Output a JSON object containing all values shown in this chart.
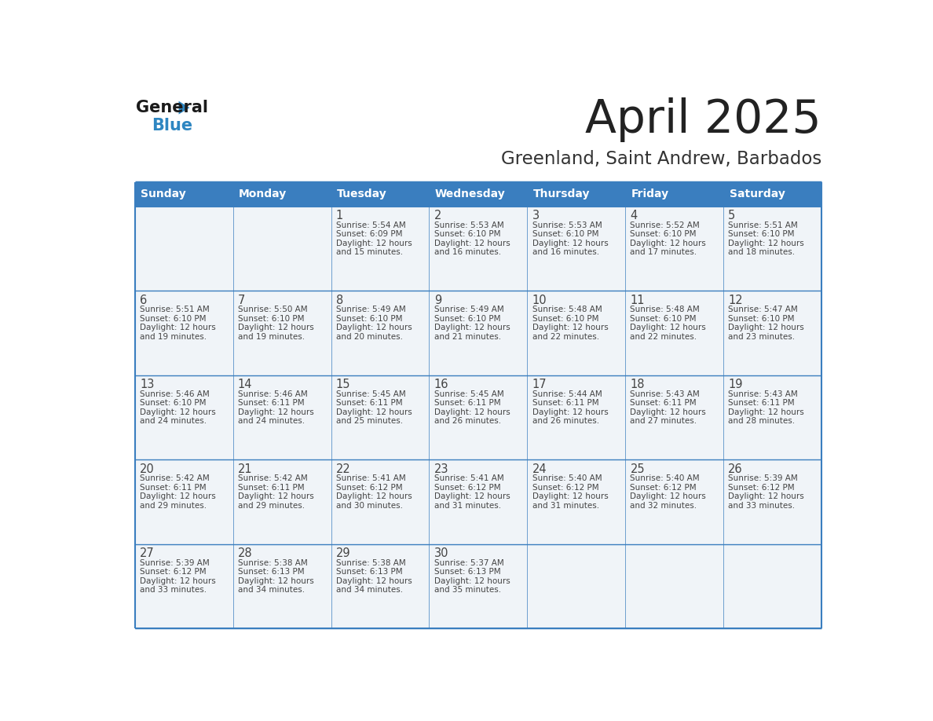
{
  "title": "April 2025",
  "subtitle": "Greenland, Saint Andrew, Barbados",
  "days_of_week": [
    "Sunday",
    "Monday",
    "Tuesday",
    "Wednesday",
    "Thursday",
    "Friday",
    "Saturday"
  ],
  "header_bg": "#3a7ebf",
  "header_text_color": "#FFFFFF",
  "cell_bg": "#f0f4f8",
  "cell_bg_empty": "#e8ecf0",
  "border_color": "#3a7ebf",
  "row_border_color": "#3a7ebf",
  "text_color": "#444444",
  "title_color": "#222222",
  "subtitle_color": "#333333",
  "logo_general_color": "#1a1a1a",
  "logo_blue_color": "#2E86C1",
  "logo_triangle_color": "#2E86C1",
  "calendar_data": [
    [
      null,
      null,
      {
        "day": 1,
        "sunrise": "5:54 AM",
        "sunset": "6:09 PM",
        "daylight_hours": 12,
        "daylight_minutes": 15
      },
      {
        "day": 2,
        "sunrise": "5:53 AM",
        "sunset": "6:10 PM",
        "daylight_hours": 12,
        "daylight_minutes": 16
      },
      {
        "day": 3,
        "sunrise": "5:53 AM",
        "sunset": "6:10 PM",
        "daylight_hours": 12,
        "daylight_minutes": 16
      },
      {
        "day": 4,
        "sunrise": "5:52 AM",
        "sunset": "6:10 PM",
        "daylight_hours": 12,
        "daylight_minutes": 17
      },
      {
        "day": 5,
        "sunrise": "5:51 AM",
        "sunset": "6:10 PM",
        "daylight_hours": 12,
        "daylight_minutes": 18
      }
    ],
    [
      {
        "day": 6,
        "sunrise": "5:51 AM",
        "sunset": "6:10 PM",
        "daylight_hours": 12,
        "daylight_minutes": 19
      },
      {
        "day": 7,
        "sunrise": "5:50 AM",
        "sunset": "6:10 PM",
        "daylight_hours": 12,
        "daylight_minutes": 19
      },
      {
        "day": 8,
        "sunrise": "5:49 AM",
        "sunset": "6:10 PM",
        "daylight_hours": 12,
        "daylight_minutes": 20
      },
      {
        "day": 9,
        "sunrise": "5:49 AM",
        "sunset": "6:10 PM",
        "daylight_hours": 12,
        "daylight_minutes": 21
      },
      {
        "day": 10,
        "sunrise": "5:48 AM",
        "sunset": "6:10 PM",
        "daylight_hours": 12,
        "daylight_minutes": 22
      },
      {
        "day": 11,
        "sunrise": "5:48 AM",
        "sunset": "6:10 PM",
        "daylight_hours": 12,
        "daylight_minutes": 22
      },
      {
        "day": 12,
        "sunrise": "5:47 AM",
        "sunset": "6:10 PM",
        "daylight_hours": 12,
        "daylight_minutes": 23
      }
    ],
    [
      {
        "day": 13,
        "sunrise": "5:46 AM",
        "sunset": "6:10 PM",
        "daylight_hours": 12,
        "daylight_minutes": 24
      },
      {
        "day": 14,
        "sunrise": "5:46 AM",
        "sunset": "6:11 PM",
        "daylight_hours": 12,
        "daylight_minutes": 24
      },
      {
        "day": 15,
        "sunrise": "5:45 AM",
        "sunset": "6:11 PM",
        "daylight_hours": 12,
        "daylight_minutes": 25
      },
      {
        "day": 16,
        "sunrise": "5:45 AM",
        "sunset": "6:11 PM",
        "daylight_hours": 12,
        "daylight_minutes": 26
      },
      {
        "day": 17,
        "sunrise": "5:44 AM",
        "sunset": "6:11 PM",
        "daylight_hours": 12,
        "daylight_minutes": 26
      },
      {
        "day": 18,
        "sunrise": "5:43 AM",
        "sunset": "6:11 PM",
        "daylight_hours": 12,
        "daylight_minutes": 27
      },
      {
        "day": 19,
        "sunrise": "5:43 AM",
        "sunset": "6:11 PM",
        "daylight_hours": 12,
        "daylight_minutes": 28
      }
    ],
    [
      {
        "day": 20,
        "sunrise": "5:42 AM",
        "sunset": "6:11 PM",
        "daylight_hours": 12,
        "daylight_minutes": 29
      },
      {
        "day": 21,
        "sunrise": "5:42 AM",
        "sunset": "6:11 PM",
        "daylight_hours": 12,
        "daylight_minutes": 29
      },
      {
        "day": 22,
        "sunrise": "5:41 AM",
        "sunset": "6:12 PM",
        "daylight_hours": 12,
        "daylight_minutes": 30
      },
      {
        "day": 23,
        "sunrise": "5:41 AM",
        "sunset": "6:12 PM",
        "daylight_hours": 12,
        "daylight_minutes": 31
      },
      {
        "day": 24,
        "sunrise": "5:40 AM",
        "sunset": "6:12 PM",
        "daylight_hours": 12,
        "daylight_minutes": 31
      },
      {
        "day": 25,
        "sunrise": "5:40 AM",
        "sunset": "6:12 PM",
        "daylight_hours": 12,
        "daylight_minutes": 32
      },
      {
        "day": 26,
        "sunrise": "5:39 AM",
        "sunset": "6:12 PM",
        "daylight_hours": 12,
        "daylight_minutes": 33
      }
    ],
    [
      {
        "day": 27,
        "sunrise": "5:39 AM",
        "sunset": "6:12 PM",
        "daylight_hours": 12,
        "daylight_minutes": 33
      },
      {
        "day": 28,
        "sunrise": "5:38 AM",
        "sunset": "6:13 PM",
        "daylight_hours": 12,
        "daylight_minutes": 34
      },
      {
        "day": 29,
        "sunrise": "5:38 AM",
        "sunset": "6:13 PM",
        "daylight_hours": 12,
        "daylight_minutes": 34
      },
      {
        "day": 30,
        "sunrise": "5:37 AM",
        "sunset": "6:13 PM",
        "daylight_hours": 12,
        "daylight_minutes": 35
      },
      null,
      null,
      null
    ]
  ]
}
